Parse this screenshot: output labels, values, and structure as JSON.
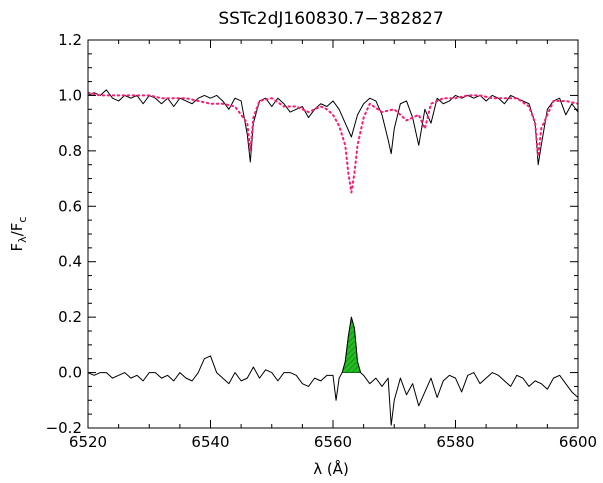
{
  "chart_data": {
    "type": "line",
    "title": "SSTc2dJ160830.7−382827",
    "xlabel": "λ (Å)",
    "ylabel": {
      "main": "F",
      "sub1": "λ",
      "sep": "/F",
      "sub2": "c"
    },
    "xlim": [
      6520,
      6600
    ],
    "ylim": [
      -0.2,
      1.2
    ],
    "x_ticks": [
      6520,
      6540,
      6560,
      6580,
      6600
    ],
    "x_tick_labels": [
      "6520",
      "6540",
      "6560",
      "6580",
      "6600"
    ],
    "y_ticks": [
      -0.2,
      0.0,
      0.2,
      0.4,
      0.6,
      0.8,
      1.0,
      1.2
    ],
    "y_tick_labels": [
      "−0.2",
      "0.0",
      "0.2",
      "0.4",
      "0.6",
      "0.8",
      "1.0",
      "1.2"
    ],
    "grid": false,
    "colors": {
      "observed": "#000000",
      "template": "#ff1a75",
      "fill": "#22bb22"
    },
    "series": [
      {
        "style": "solid",
        "x": [
          6520,
          6521,
          6522,
          6523,
          6524,
          6525,
          6526,
          6527,
          6528,
          6529,
          6530,
          6531,
          6532,
          6533,
          6534,
          6535,
          6536,
          6537,
          6538,
          6539,
          6540,
          6541,
          6542,
          6543,
          6544,
          6545,
          6546,
          6546.5,
          6547,
          6548,
          6549,
          6550,
          6551,
          6552,
          6553,
          6554,
          6555,
          6556,
          6557,
          6558,
          6559,
          6560,
          6561,
          6562,
          6563,
          6564,
          6565,
          6566,
          6567,
          6568,
          6569,
          6569.5,
          6570,
          6571,
          6572,
          6573,
          6574,
          6575,
          6576,
          6577,
          6578,
          6579,
          6580,
          6581,
          6582,
          6583,
          6584,
          6585,
          6586,
          6587,
          6588,
          6589,
          6590,
          6591,
          6592,
          6593,
          6593.5,
          6594,
          6595,
          6596,
          6597,
          6598,
          6599,
          6600
        ],
        "y": [
          1.0,
          1.01,
          1.0,
          1.02,
          0.99,
          0.98,
          1.0,
          0.99,
          1.0,
          0.97,
          1.0,
          0.99,
          0.97,
          0.99,
          0.96,
          0.99,
          0.98,
          0.97,
          0.99,
          1.0,
          0.99,
          1.0,
          0.98,
          0.95,
          0.99,
          0.98,
          0.86,
          0.76,
          0.9,
          0.98,
          0.99,
          0.96,
          0.99,
          0.97,
          0.94,
          0.95,
          0.96,
          0.92,
          0.95,
          0.97,
          0.96,
          0.98,
          0.95,
          0.9,
          0.85,
          0.93,
          0.97,
          0.99,
          0.98,
          0.93,
          0.84,
          0.79,
          0.88,
          0.97,
          0.98,
          0.92,
          0.82,
          0.95,
          0.9,
          0.99,
          0.97,
          0.98,
          1.0,
          0.99,
          1.0,
          0.99,
          1.0,
          0.98,
          1.0,
          0.99,
          0.97,
          1.0,
          0.99,
          0.98,
          0.97,
          0.9,
          0.75,
          0.82,
          0.95,
          0.98,
          0.99,
          0.93,
          0.97,
          0.94
        ]
      },
      {
        "style": "dotted",
        "x": [
          6520,
          6522,
          6524,
          6526,
          6528,
          6530,
          6532,
          6534,
          6536,
          6538,
          6540,
          6542,
          6544,
          6546,
          6546.5,
          6547,
          6548,
          6550,
          6552,
          6554,
          6556,
          6558,
          6559,
          6560,
          6561,
          6562,
          6562.5,
          6563,
          6563.5,
          6564,
          6565,
          6566,
          6568,
          6570,
          6572,
          6574,
          6575,
          6576,
          6578,
          6580,
          6582,
          6584,
          6586,
          6588,
          6590,
          6592,
          6593,
          6593.5,
          6594,
          6596,
          6598,
          6600
        ],
        "y": [
          1.01,
          1.0,
          1.0,
          1.0,
          1.0,
          1.0,
          0.99,
          0.99,
          0.99,
          0.98,
          0.97,
          0.97,
          0.96,
          0.9,
          0.8,
          0.92,
          0.98,
          0.99,
          0.96,
          0.96,
          0.94,
          0.96,
          0.95,
          0.93,
          0.89,
          0.82,
          0.72,
          0.65,
          0.72,
          0.82,
          0.92,
          0.97,
          0.94,
          0.95,
          0.91,
          0.93,
          0.88,
          0.97,
          0.99,
          0.99,
          1.0,
          1.0,
          0.99,
          0.99,
          0.99,
          0.96,
          0.9,
          0.78,
          0.88,
          0.98,
          0.98,
          0.97
        ]
      },
      {
        "style": "solid",
        "x": [
          6520,
          6521,
          6522,
          6523,
          6524,
          6525,
          6526,
          6527,
          6528,
          6529,
          6530,
          6531,
          6532,
          6533,
          6534,
          6535,
          6536,
          6537,
          6538,
          6539,
          6540,
          6541,
          6542,
          6543,
          6544,
          6545,
          6546,
          6547,
          6548,
          6549,
          6550,
          6551,
          6552,
          6553,
          6554,
          6555,
          6556,
          6557,
          6558,
          6559,
          6560,
          6560.5,
          6561,
          6561.5,
          6562,
          6562.5,
          6563,
          6563.5,
          6564,
          6564.5,
          6565,
          6566,
          6567,
          6568,
          6569,
          6569.5,
          6570,
          6571,
          6572,
          6573,
          6574,
          6575,
          6576,
          6577,
          6578,
          6579,
          6580,
          6581,
          6582,
          6583,
          6584,
          6585,
          6586,
          6587,
          6588,
          6589,
          6590,
          6591,
          6592,
          6593,
          6594,
          6595,
          6596,
          6597,
          6598,
          6599,
          6600
        ],
        "y": [
          0.0,
          -0.01,
          0.0,
          0.0,
          -0.02,
          -0.01,
          0.0,
          -0.02,
          -0.01,
          -0.03,
          0.0,
          0.0,
          -0.02,
          -0.01,
          -0.03,
          0.0,
          -0.02,
          -0.03,
          0.0,
          0.05,
          0.06,
          0.0,
          -0.02,
          -0.04,
          0.0,
          -0.03,
          -0.02,
          0.02,
          -0.02,
          0.01,
          0.0,
          -0.03,
          0.0,
          0.0,
          -0.01,
          -0.04,
          -0.05,
          -0.02,
          -0.03,
          -0.01,
          -0.01,
          -0.1,
          -0.02,
          0.0,
          0.04,
          0.13,
          0.2,
          0.16,
          0.04,
          0.0,
          -0.01,
          -0.04,
          -0.02,
          -0.05,
          -0.02,
          -0.19,
          -0.1,
          -0.02,
          -0.08,
          -0.04,
          -0.12,
          -0.07,
          -0.02,
          -0.09,
          -0.03,
          -0.01,
          -0.02,
          -0.07,
          -0.01,
          0.0,
          -0.04,
          -0.02,
          0.0,
          -0.01,
          -0.03,
          -0.05,
          -0.01,
          -0.02,
          -0.05,
          -0.03,
          -0.04,
          -0.06,
          -0.02,
          -0.01,
          -0.04,
          -0.07,
          -0.09
        ]
      }
    ],
    "fill_region": {
      "x": [
        6561.5,
        6562,
        6562.5,
        6563,
        6563.5,
        6564,
        6564.5
      ],
      "y": [
        0.0,
        0.04,
        0.13,
        0.2,
        0.16,
        0.04,
        0.0
      ]
    }
  }
}
